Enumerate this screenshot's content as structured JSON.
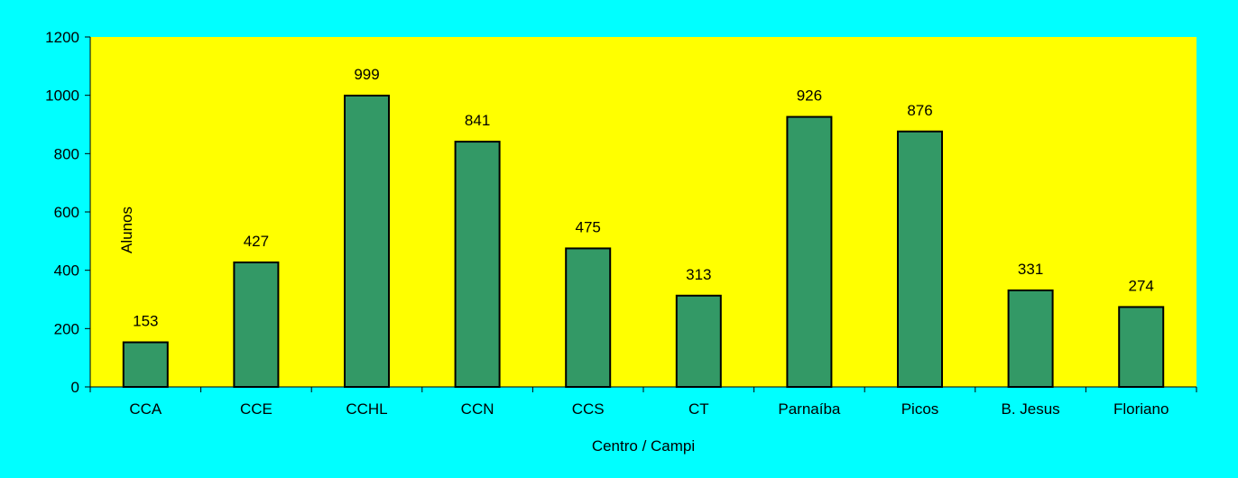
{
  "chart_data": {
    "type": "bar",
    "title": "",
    "xlabel": "Centro / Campi",
    "ylabel": "Alunos",
    "categories": [
      "CCA",
      "CCE",
      "CCHL",
      "CCN",
      "CCS",
      "CT",
      "Parnaíba",
      "Picos",
      "B. Jesus",
      "Floriano"
    ],
    "values": [
      153,
      427,
      999,
      841,
      475,
      313,
      926,
      876,
      331,
      274
    ],
    "value_labels": [
      "153",
      "427",
      "999",
      "841",
      "475",
      "313",
      "926",
      "876",
      "331",
      "274"
    ],
    "ylim": [
      0,
      1200
    ],
    "yticks": [
      0,
      200,
      400,
      600,
      800,
      1000,
      1200
    ],
    "ytick_labels": [
      "0",
      "200",
      "400",
      "600",
      "800",
      "1000",
      "1200"
    ],
    "grid": false,
    "legend": "none",
    "colors": {
      "background": "#00FFFF",
      "plot_area": "#FFFF00",
      "bar_fill": "#339966",
      "bar_stroke": "#000000"
    }
  }
}
